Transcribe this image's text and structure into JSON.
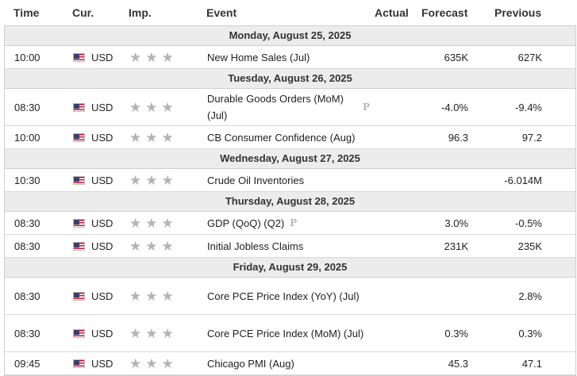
{
  "header": {
    "time": "Time",
    "currency": "Cur.",
    "importance": "Imp.",
    "event": "Event",
    "actual": "Actual",
    "forecast": "Forecast",
    "previous": "Previous"
  },
  "colors": {
    "day_band": "#ececec",
    "star": "#b3b3b3",
    "border": "#cfcfcf"
  },
  "days": [
    {
      "label": "Monday, August 25, 2025",
      "events": [
        {
          "time": "10:00",
          "currency": "USD",
          "flag": "us-flag-icon",
          "event": "New Home Sales (Jul)",
          "preliminary": false,
          "actual": "",
          "forecast": "635K",
          "previous": "627K"
        }
      ]
    },
    {
      "label": "Tuesday, August 26, 2025",
      "events": [
        {
          "time": "08:30",
          "currency": "USD",
          "flag": "us-flag-icon",
          "event": "Durable Goods Orders (MoM) (Jul)",
          "preliminary": true,
          "actual": "",
          "forecast": "-4.0%",
          "previous": "-9.4%"
        },
        {
          "time": "10:00",
          "currency": "USD",
          "flag": "us-flag-icon",
          "event": "CB Consumer Confidence (Aug)",
          "preliminary": false,
          "actual": "",
          "forecast": "96.3",
          "previous": "97.2"
        }
      ]
    },
    {
      "label": "Wednesday, August 27, 2025",
      "events": [
        {
          "time": "10:30",
          "currency": "USD",
          "flag": "us-flag-icon",
          "event": "Crude Oil Inventories",
          "preliminary": false,
          "actual": "",
          "forecast": "",
          "previous": "-6.014M"
        }
      ]
    },
    {
      "label": "Thursday, August 28, 2025",
      "events": [
        {
          "time": "08:30",
          "currency": "USD",
          "flag": "us-flag-icon",
          "event": "GDP (QoQ) (Q2)",
          "preliminary": true,
          "actual": "",
          "forecast": "3.0%",
          "previous": "-0.5%"
        },
        {
          "time": "08:30",
          "currency": "USD",
          "flag": "us-flag-icon",
          "event": "Initial Jobless Claims",
          "preliminary": false,
          "actual": "",
          "forecast": "231K",
          "previous": "235K"
        }
      ]
    },
    {
      "label": "Friday, August 29, 2025",
      "events": [
        {
          "time": "08:30",
          "currency": "USD",
          "flag": "us-flag-icon",
          "event": "Core PCE Price Index (YoY) (Jul)",
          "preliminary": false,
          "actual": "",
          "forecast": "",
          "previous": "2.8%"
        },
        {
          "time": "08:30",
          "currency": "USD",
          "flag": "us-flag-icon",
          "event": "Core PCE Price Index (MoM) (Jul)",
          "preliminary": false,
          "actual": "",
          "forecast": "0.3%",
          "previous": "0.3%"
        },
        {
          "time": "09:45",
          "currency": "USD",
          "flag": "us-flag-icon",
          "event": "Chicago PMI (Aug)",
          "preliminary": false,
          "actual": "",
          "forecast": "45.3",
          "previous": "47.1"
        }
      ]
    }
  ],
  "preliminary_mark": "P",
  "importance_stars": 3
}
